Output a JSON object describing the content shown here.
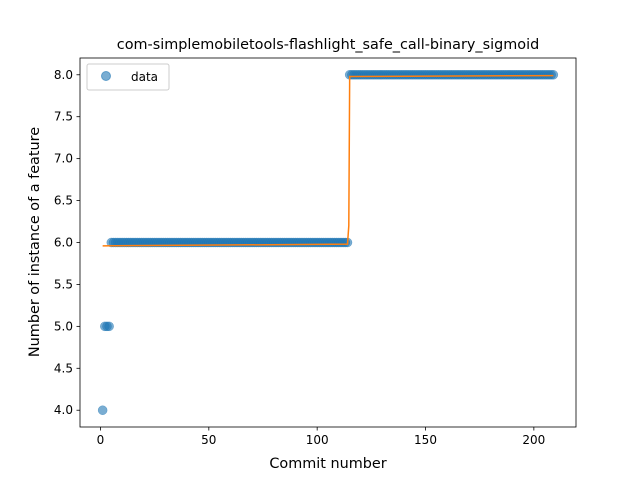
{
  "chart_data": {
    "type": "scatter",
    "title": "com-simplemobiletools-flashlight_safe_call-binary_sigmoid",
    "xlabel": "Commit number",
    "ylabel": "Number of instance of a feature",
    "xlim": [
      -9.45,
      219.45
    ],
    "ylim": [
      3.8,
      8.2
    ],
    "x_ticks": [
      0,
      50,
      100,
      150,
      200
    ],
    "y_ticks": [
      4.0,
      4.5,
      5.0,
      5.5,
      6.0,
      6.5,
      7.0,
      7.5,
      8.0
    ],
    "legend": {
      "position": "upper-left",
      "label": "data"
    },
    "series": [
      {
        "name": "data",
        "style": "markers",
        "segments": [
          {
            "x_start": 1,
            "x_end": 1,
            "y": 4
          },
          {
            "x_start": 2,
            "x_end": 4,
            "y": 5
          },
          {
            "x_start": 5,
            "x_end": 114,
            "y": 6
          },
          {
            "x_start": 115,
            "x_end": 209,
            "y": 8
          }
        ]
      },
      {
        "name": "sigmoid fit",
        "style": "line",
        "x": [
          1,
          114,
          114.6,
          115,
          209
        ],
        "y": [
          5.96,
          5.98,
          6.2,
          7.98,
          7.99
        ]
      }
    ],
    "colors": {
      "data": "#1f77b4",
      "fit": "#ff7f0e"
    }
  }
}
